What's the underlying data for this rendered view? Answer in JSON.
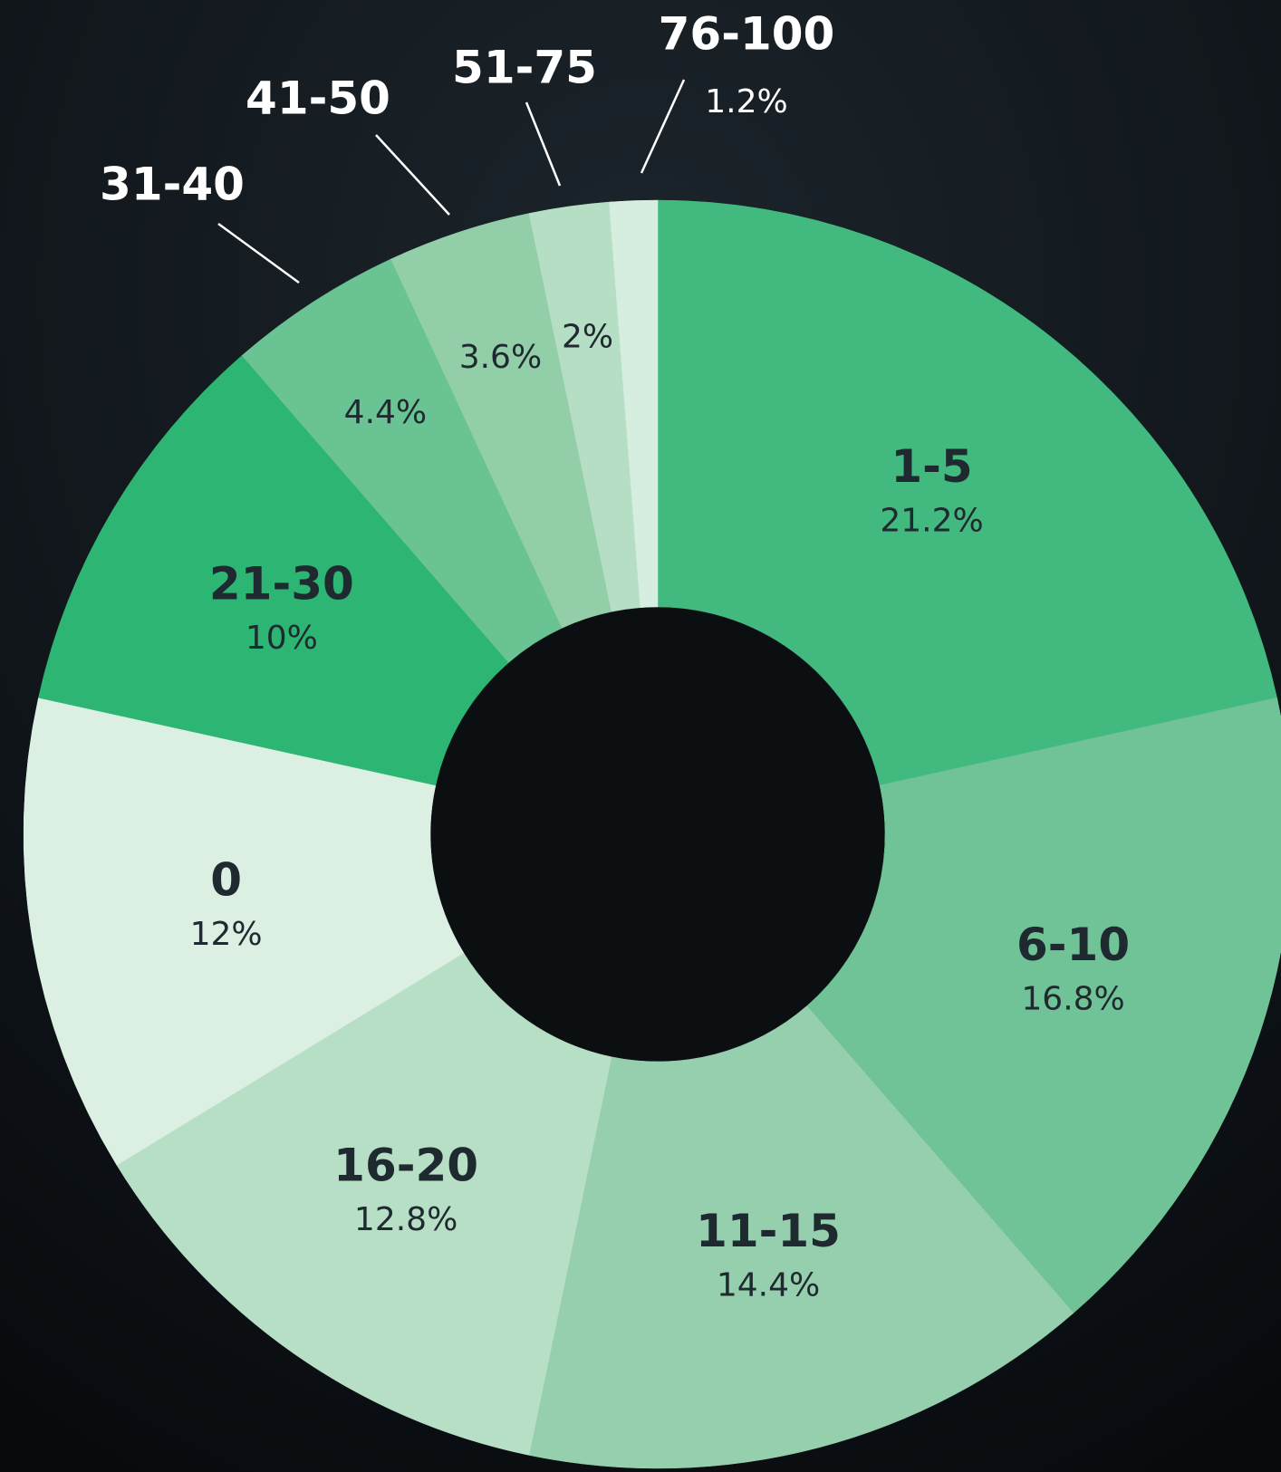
{
  "chart_data": {
    "type": "donut",
    "categories": [
      "1-5",
      "6-10",
      "11-15",
      "16-20",
      "0",
      "21-30",
      "31-40",
      "41-50",
      "51-75",
      "76-100"
    ],
    "values": [
      21.2,
      16.8,
      14.4,
      12.8,
      12,
      10,
      4.4,
      3.6,
      2,
      1.2
    ],
    "value_labels": [
      "21.2%",
      "16.8%",
      "14.4%",
      "12.8%",
      "12%",
      "10%",
      "4.4%",
      "3.6%",
      "2%",
      "1.2%"
    ],
    "colors": [
      "#42b97f",
      "#70c396",
      "#96cfad",
      "#b7dfc6",
      "#dbefe3",
      "#2db673",
      "#6ac392",
      "#92cfa8",
      "#b5dec4",
      "#d5eedf"
    ]
  }
}
